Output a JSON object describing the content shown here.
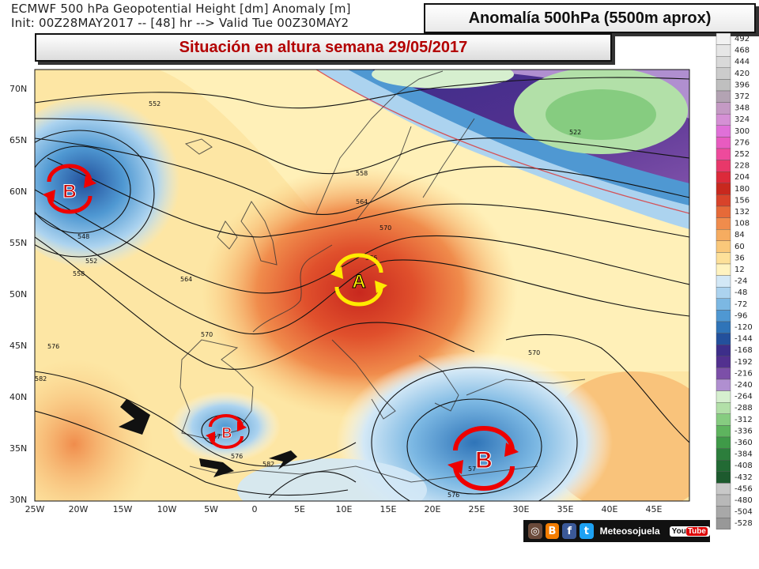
{
  "header": {
    "line1": "ECMWF 500 hPa Geopotential Height [dm] Anomaly [m]",
    "line2": "Init: 00Z28MAY2017 -- [48] hr --> Valid Tue 00Z30MAY2"
  },
  "title": "Anomalía 500hPa (5500m aprox)",
  "subtitle": "Situación en altura semana 29/05/2017",
  "map": {
    "lon_labels": [
      "25W",
      "20W",
      "15W",
      "10W",
      "5W",
      "0",
      "5E",
      "10E",
      "15E",
      "20E",
      "25E",
      "30E",
      "35E",
      "40E",
      "45E"
    ],
    "lat_labels": [
      "70N",
      "65N",
      "60N",
      "55N",
      "50N",
      "45N",
      "40N",
      "35N",
      "30N"
    ],
    "contour_labels": [
      "552",
      "522",
      "558",
      "564",
      "570",
      "576",
      "548",
      "552",
      "558",
      "564",
      "570",
      "576",
      "582",
      "570",
      "576",
      "57",
      "576",
      "582",
      "57"
    ],
    "pressure_systems": [
      {
        "id": "low-atlantic",
        "letter": "B",
        "type": "low"
      },
      {
        "id": "high-central-europe",
        "letter": "A",
        "type": "high"
      },
      {
        "id": "low-iberia",
        "letter": "B",
        "type": "low"
      },
      {
        "id": "low-aegean",
        "letter": "B",
        "type": "low"
      }
    ]
  },
  "legend": {
    "values": [
      "492",
      "468",
      "444",
      "420",
      "396",
      "372",
      "348",
      "324",
      "300",
      "276",
      "252",
      "228",
      "204",
      "180",
      "156",
      "132",
      "108",
      "84",
      "60",
      "36",
      "12",
      "-24",
      "-48",
      "-72",
      "-96",
      "-120",
      "-144",
      "-168",
      "-192",
      "-216",
      "-240",
      "-264",
      "-288",
      "-312",
      "-336",
      "-360",
      "-384",
      "-408",
      "-432",
      "-456",
      "-480",
      "-504",
      "-528"
    ],
    "colors": [
      "#f2f2f2",
      "#e6e6e6",
      "#d9d9d9",
      "#cccccc",
      "#bfbfbf",
      "#b3a3b3",
      "#c49ac4",
      "#d590d5",
      "#e070d8",
      "#e85bc0",
      "#ee4a9c",
      "#e8386a",
      "#dc2a3a",
      "#c8281e",
      "#d8432a",
      "#e66a38",
      "#f08c4c",
      "#f6ac60",
      "#fac87a",
      "#fde099",
      "#fff3c0",
      "#d3e8f6",
      "#acd3ef",
      "#7cb8e3",
      "#4f98d2",
      "#2f74b8",
      "#23509c",
      "#3d2e8a",
      "#52308f",
      "#7c4fa8",
      "#b08fd0",
      "#d6efcf",
      "#b2e0a8",
      "#86cc80",
      "#5eb45e",
      "#3f9a48",
      "#2c7e3c",
      "#226a34",
      "#1d5a2e",
      "#c8c8c8",
      "#b8b8b8",
      "#a8a8a8",
      "#989898"
    ]
  },
  "footer": {
    "brand": "Meteosojuela",
    "youtube_text": "You",
    "youtube_badge": "Tube",
    "icons": [
      "instagram-icon",
      "blogger-icon",
      "facebook-icon",
      "twitter-icon",
      "youtube-icon"
    ]
  }
}
